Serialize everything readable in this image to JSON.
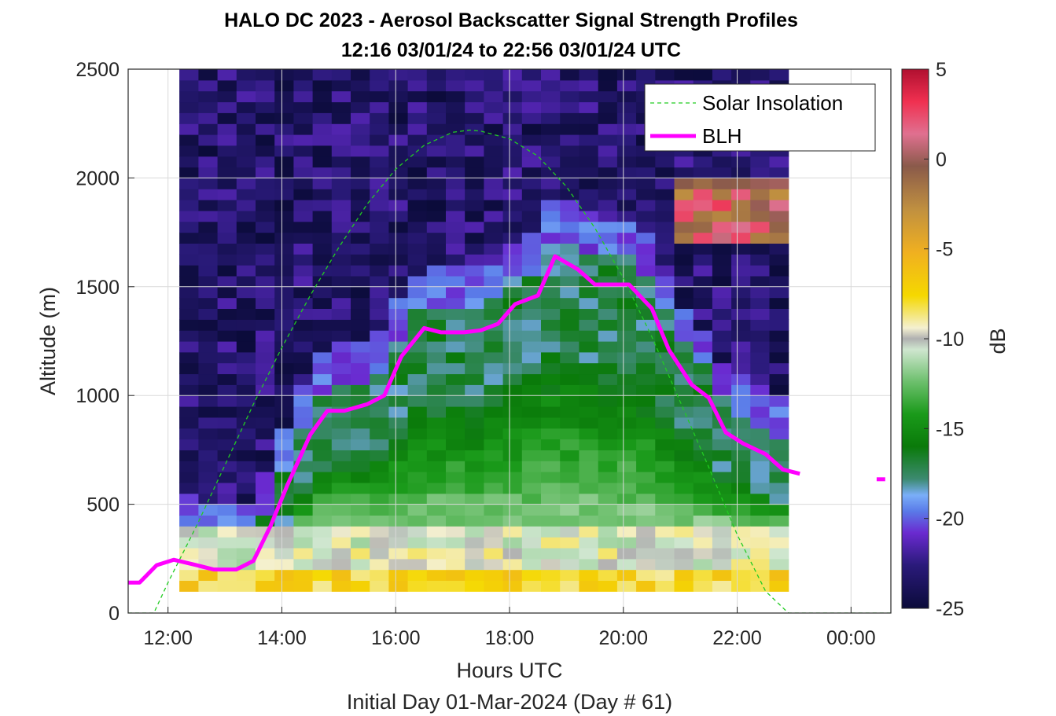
{
  "chart_data": {
    "type": "heatmap",
    "title": "HALO DC 2023 - Aerosol Backscatter Signal Strength Profiles",
    "subtitle": "12:16 03/01/24 to 22:56 03/01/24  UTC",
    "xlabel": "Hours UTC",
    "xlabel2": "Initial Day 01-Mar-2024 (Day # 61)",
    "ylabel": "Altitude (m)",
    "colorbar_label": "dB",
    "xlim_hours": [
      11.3,
      24.7
    ],
    "ylim": [
      0,
      2500
    ],
    "x_ticks": [
      {
        "hours": 12,
        "label": "12:00"
      },
      {
        "hours": 14,
        "label": "14:00"
      },
      {
        "hours": 16,
        "label": "16:00"
      },
      {
        "hours": 18,
        "label": "18:00"
      },
      {
        "hours": 20,
        "label": "20:00"
      },
      {
        "hours": 22,
        "label": "22:00"
      },
      {
        "hours": 24,
        "label": "00:00"
      }
    ],
    "y_ticks": [
      {
        "value": 0,
        "label": "0"
      },
      {
        "value": 500,
        "label": "500"
      },
      {
        "value": 1000,
        "label": "1000"
      },
      {
        "value": 1500,
        "label": "1500"
      },
      {
        "value": 2000,
        "label": "2000"
      },
      {
        "value": 2500,
        "label": "2500"
      }
    ],
    "colorbar_range": [
      -25,
      5
    ],
    "colorbar_ticks": [
      {
        "value": 5,
        "label": "5"
      },
      {
        "value": 0,
        "label": "0"
      },
      {
        "value": -5,
        "label": "-5"
      },
      {
        "value": -10,
        "label": "-10"
      },
      {
        "value": -15,
        "label": "-15"
      },
      {
        "value": -20,
        "label": "-20"
      },
      {
        "value": -25,
        "label": "-25"
      }
    ],
    "heatmap": {
      "x_start_hours": 12.2,
      "x_end_hours": 22.9,
      "y_start_m": 100,
      "y_end_m": 2500,
      "n_cols": 32,
      "n_rows": 48,
      "description_colors": "aerosol signal high near surface (yellow ~ -7 dB), green mixed layer up to BLH, purple/dark free troposphere above"
    },
    "series": [
      {
        "name": "Solar Insolation",
        "style": "dashed",
        "color": "#22cc22",
        "x_hours": [
          11.3,
          11.75,
          12.0,
          12.5,
          13.0,
          13.5,
          14.0,
          14.5,
          15.0,
          15.5,
          16.0,
          16.5,
          17.0,
          17.3,
          17.5,
          18.0,
          18.5,
          19.0,
          19.5,
          20.0,
          20.5,
          21.0,
          21.5,
          22.0,
          22.5,
          22.9,
          24.7
        ],
        "y": [
          0,
          0,
          140,
          400,
          680,
          960,
          1220,
          1460,
          1680,
          1880,
          2040,
          2150,
          2210,
          2220,
          2215,
          2180,
          2100,
          1960,
          1770,
          1540,
          1270,
          970,
          670,
          360,
          100,
          0,
          0
        ]
      },
      {
        "name": "BLH",
        "style": "solid",
        "color": "#ff00ff",
        "x_hours": [
          11.3,
          11.5,
          11.8,
          12.1,
          12.5,
          12.8,
          13.2,
          13.5,
          13.8,
          14.1,
          14.5,
          14.8,
          15.1,
          15.5,
          15.8,
          16.1,
          16.5,
          16.8,
          17.2,
          17.5,
          17.8,
          18.1,
          18.5,
          18.8,
          19.2,
          19.5,
          19.8,
          20.1,
          20.5,
          20.8,
          21.2,
          21.5,
          21.8,
          22.1,
          22.5,
          22.8,
          23.1
        ],
        "y": [
          140,
          140,
          220,
          245,
          220,
          200,
          200,
          240,
          400,
          590,
          820,
          930,
          930,
          960,
          1000,
          1180,
          1310,
          1290,
          1290,
          1300,
          1330,
          1420,
          1460,
          1640,
          1580,
          1510,
          1510,
          1510,
          1400,
          1210,
          1050,
          990,
          830,
          780,
          730,
          660,
          640
        ]
      },
      {
        "name": "",
        "style": "solid",
        "color": "#ff00ff",
        "x_hours": [
          24.45,
          24.6
        ],
        "y": [
          615,
          615
        ]
      }
    ],
    "legend": {
      "position": "top-right",
      "entries": [
        {
          "label": "Solar Insolation",
          "color": "#22cc22",
          "style": "dashed"
        },
        {
          "label": "BLH",
          "color": "#ff00ff",
          "style": "solid"
        }
      ]
    },
    "grid": true
  }
}
